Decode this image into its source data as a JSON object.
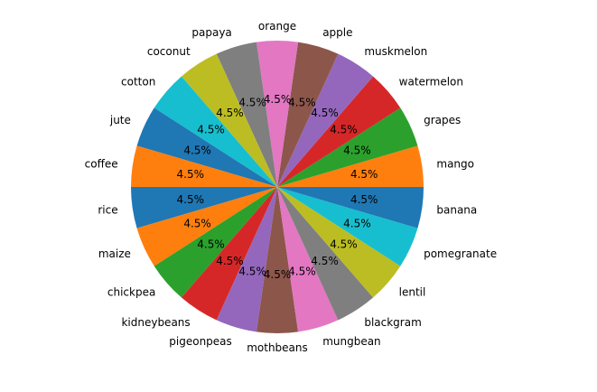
{
  "chart_data": {
    "type": "pie",
    "title": "",
    "categories": [
      "rice",
      "maize",
      "chickpea",
      "kidneybeans",
      "pigeonpeas",
      "mothbeans",
      "mungbean",
      "blackgram",
      "lentil",
      "pomegranate",
      "banana",
      "mango",
      "grapes",
      "watermelon",
      "muskmelon",
      "apple",
      "orange",
      "papaya",
      "coconut",
      "cotton",
      "jute",
      "coffee"
    ],
    "values": [
      100,
      100,
      100,
      100,
      100,
      100,
      100,
      100,
      100,
      100,
      100,
      100,
      100,
      100,
      100,
      100,
      100,
      100,
      100,
      100,
      100,
      100
    ],
    "percent_labels": [
      "4.5%",
      "4.5%",
      "4.5%",
      "4.5%",
      "4.5%",
      "4.5%",
      "4.5%",
      "4.5%",
      "4.5%",
      "4.5%",
      "4.5%",
      "4.5%",
      "4.5%",
      "4.5%",
      "4.5%",
      "4.5%",
      "4.5%",
      "4.5%",
      "4.5%",
      "4.5%",
      "4.5%",
      "4.5%"
    ],
    "colors": [
      "#1f77b4",
      "#ff7f0e",
      "#2ca02c",
      "#d62728",
      "#9467bd",
      "#8c564b",
      "#e377c2",
      "#7f7f7f",
      "#bcbd22",
      "#17becf",
      "#1f77b4",
      "#ff7f0e",
      "#2ca02c",
      "#d62728",
      "#9467bd",
      "#8c564b",
      "#e377c2",
      "#7f7f7f",
      "#bcbd22",
      "#17becf",
      "#1f77b4",
      "#ff7f0e"
    ],
    "start_angle": 180,
    "direction": "counterclockwise",
    "legend": "none"
  }
}
